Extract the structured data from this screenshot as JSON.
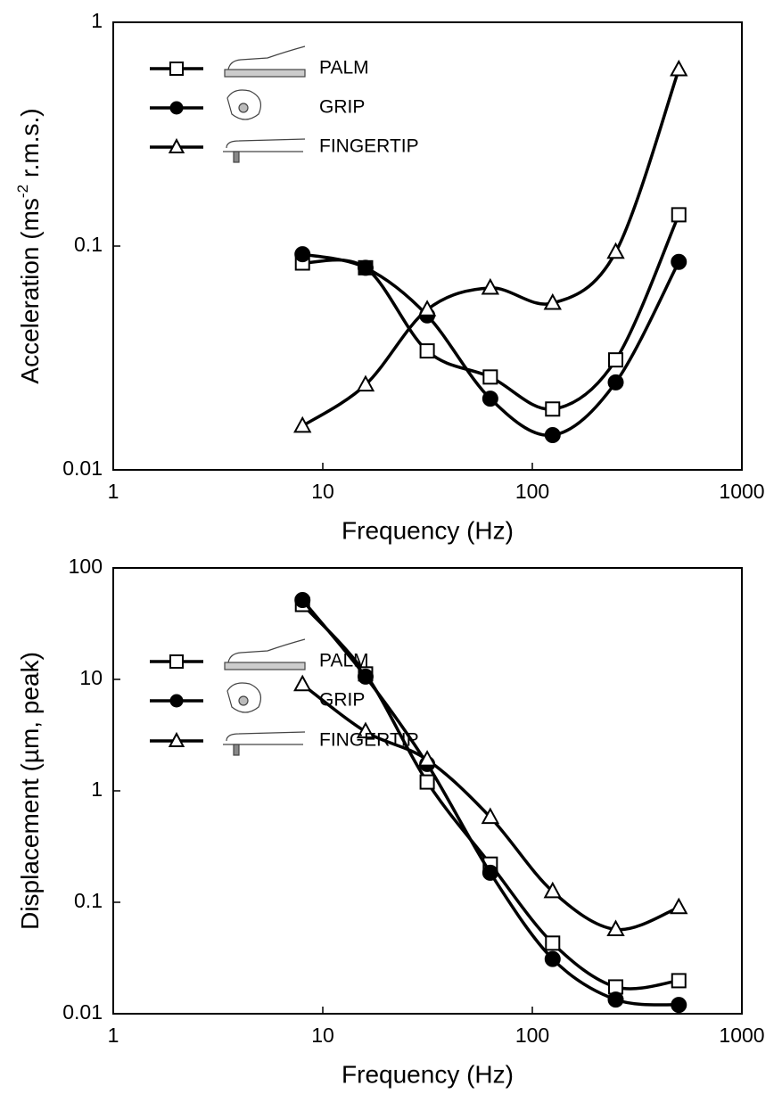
{
  "chart_data": [
    {
      "type": "line",
      "x_label": "Frequency (Hz)",
      "y_label_parts": [
        "Acceleration (ms",
        "-2",
        " r.m.s.)"
      ],
      "x": [
        8,
        16,
        31.5,
        63,
        125,
        250,
        500
      ],
      "series": [
        {
          "name": "PALM",
          "color": "#000000",
          "marker": "square",
          "values": [
            0.084,
            0.08,
            0.034,
            0.026,
            0.0187,
            0.031,
            0.138
          ]
        },
        {
          "name": "GRIP",
          "color": "#000000",
          "marker": "circle",
          "values": [
            0.092,
            0.08,
            0.049,
            0.0208,
            0.0143,
            0.0246,
            0.085
          ]
        },
        {
          "name": "FINGERTIP",
          "color": "#000000",
          "marker": "triangle",
          "values": [
            0.0157,
            0.024,
            0.052,
            0.065,
            0.0556,
            0.094,
            0.615
          ]
        }
      ],
      "log_x": true,
      "log_y": true,
      "xlim": [
        1,
        1000
      ],
      "xticks": [
        1,
        10,
        100,
        1000
      ],
      "ylim": [
        0.01,
        1
      ],
      "yticks": [
        0.01,
        0.1,
        1
      ],
      "legend": "upper-left"
    },
    {
      "type": "line",
      "x_label": "Frequency (Hz)",
      "y_label_parts": [
        "Displacement (µm, peak)"
      ],
      "x": [
        8,
        16,
        31.5,
        63,
        125,
        250,
        500
      ],
      "series": [
        {
          "name": "PALM",
          "color": "#000000",
          "marker": "square",
          "values": [
            47,
            11.2,
            1.2,
            0.22,
            0.043,
            0.0174,
            0.0198
          ]
        },
        {
          "name": "GRIP",
          "color": "#000000",
          "marker": "circle",
          "values": [
            51.5,
            10.6,
            1.74,
            0.184,
            0.031,
            0.0134,
            0.012
          ]
        },
        {
          "name": "FINGERTIP",
          "color": "#000000",
          "marker": "triangle",
          "values": [
            9,
            3.4,
            1.9,
            0.58,
            0.125,
            0.057,
            0.09
          ]
        }
      ],
      "log_x": true,
      "log_y": true,
      "xlim": [
        1,
        1000
      ],
      "xticks": [
        1,
        10,
        100,
        1000
      ],
      "ylim": [
        0.01,
        100
      ],
      "yticks": [
        0.01,
        0.1,
        1,
        10,
        100
      ],
      "legend": "lower-left"
    }
  ]
}
